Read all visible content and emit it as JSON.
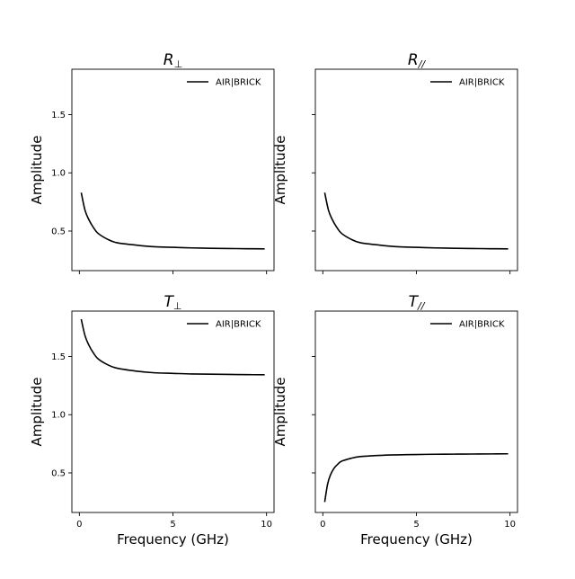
{
  "chart_data": [
    {
      "type": "line",
      "title": {
        "symbol": "R",
        "subscript": "⊥"
      },
      "xlabel": "",
      "ylabel": "Amplitude",
      "xlim": [
        -0.4,
        10.4
      ],
      "ylim": [
        0.16,
        1.89
      ],
      "xticks": [
        0,
        5,
        10
      ],
      "yticks": [
        0.5,
        1.0,
        1.5
      ],
      "show_xtick_labels": false,
      "show_ytick_labels": true,
      "legend": "top-right",
      "grid": false,
      "series": [
        {
          "name": "AIR|BRICK",
          "color": "#000000",
          "x": [
            0.1,
            0.3,
            0.5,
            0.75,
            1.0,
            1.5,
            2.0,
            3.0,
            4.0,
            5.0,
            6.0,
            7.0,
            8.0,
            9.0,
            9.9
          ],
          "y": [
            0.83,
            0.68,
            0.6,
            0.53,
            0.48,
            0.43,
            0.4,
            0.38,
            0.365,
            0.36,
            0.355,
            0.352,
            0.35,
            0.348,
            0.347
          ]
        }
      ]
    },
    {
      "type": "line",
      "title": {
        "symbol": "R",
        "subscript": "//"
      },
      "xlabel": "",
      "ylabel": "Amplitude",
      "xlim": [
        -0.4,
        10.4
      ],
      "ylim": [
        0.16,
        1.89
      ],
      "xticks": [
        0,
        5,
        10
      ],
      "yticks": [
        0.5,
        1.0,
        1.5
      ],
      "show_xtick_labels": false,
      "show_ytick_labels": false,
      "legend": "top-right",
      "grid": false,
      "series": [
        {
          "name": "AIR|BRICK",
          "color": "#000000",
          "x": [
            0.1,
            0.3,
            0.5,
            0.75,
            1.0,
            1.5,
            2.0,
            3.0,
            4.0,
            5.0,
            6.0,
            7.0,
            8.0,
            9.0,
            9.9
          ],
          "y": [
            0.83,
            0.68,
            0.6,
            0.53,
            0.48,
            0.43,
            0.4,
            0.38,
            0.365,
            0.36,
            0.355,
            0.352,
            0.35,
            0.348,
            0.347
          ]
        }
      ]
    },
    {
      "type": "line",
      "title": {
        "symbol": "T",
        "subscript": "⊥"
      },
      "xlabel": "Frequency (GHz)",
      "ylabel": "Amplitude",
      "xlim": [
        -0.4,
        10.4
      ],
      "ylim": [
        0.16,
        1.89
      ],
      "xticks": [
        0,
        5,
        10
      ],
      "yticks": [
        0.5,
        1.0,
        1.5
      ],
      "show_xtick_labels": true,
      "show_ytick_labels": true,
      "legend": "top-right",
      "grid": false,
      "series": [
        {
          "name": "AIR|BRICK",
          "color": "#000000",
          "x": [
            0.1,
            0.3,
            0.5,
            0.75,
            1.0,
            1.5,
            2.0,
            3.0,
            4.0,
            5.0,
            6.0,
            7.0,
            8.0,
            9.0,
            9.9
          ],
          "y": [
            1.82,
            1.68,
            1.6,
            1.53,
            1.48,
            1.43,
            1.4,
            1.375,
            1.36,
            1.355,
            1.35,
            1.348,
            1.346,
            1.344,
            1.343
          ]
        }
      ]
    },
    {
      "type": "line",
      "title": {
        "symbol": "T",
        "subscript": "//"
      },
      "xlabel": "Frequency (GHz)",
      "ylabel": "Amplitude",
      "xlim": [
        -0.4,
        10.4
      ],
      "ylim": [
        0.16,
        1.89
      ],
      "xticks": [
        0,
        5,
        10
      ],
      "yticks": [
        0.5,
        1.0,
        1.5
      ],
      "show_xtick_labels": true,
      "show_ytick_labels": false,
      "legend": "top-right",
      "grid": false,
      "series": [
        {
          "name": "AIR|BRICK",
          "color": "#000000",
          "x": [
            0.1,
            0.25,
            0.4,
            0.6,
            0.8,
            1.0,
            1.5,
            2.0,
            3.0,
            4.0,
            5.0,
            6.0,
            7.0,
            8.0,
            9.0,
            9.9
          ],
          "y": [
            0.25,
            0.4,
            0.48,
            0.54,
            0.575,
            0.6,
            0.625,
            0.64,
            0.65,
            0.655,
            0.658,
            0.66,
            0.661,
            0.662,
            0.663,
            0.664
          ]
        }
      ]
    }
  ],
  "colors": {
    "line": "#000000",
    "background": "#ffffff"
  }
}
